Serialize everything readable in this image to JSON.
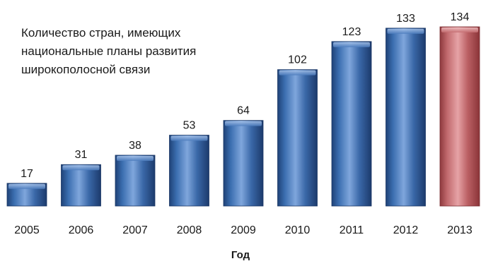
{
  "chart_data": {
    "type": "bar",
    "title_lines": [
      "Количество стран, имеющих",
      "национальные планы развития",
      "широкополосной связи"
    ],
    "xlabel": "Год",
    "ylabel": "",
    "categories": [
      "2005",
      "2006",
      "2007",
      "2008",
      "2009",
      "2010",
      "2011",
      "2012",
      "2013"
    ],
    "values": [
      17,
      31,
      38,
      53,
      64,
      102,
      123,
      133,
      134
    ],
    "ylim": [
      0,
      134
    ],
    "grid": false,
    "colors": {
      "bar_default": "#2f5f9e",
      "bar_highlight": "#b65a5e",
      "highlight_category": "2013"
    }
  }
}
